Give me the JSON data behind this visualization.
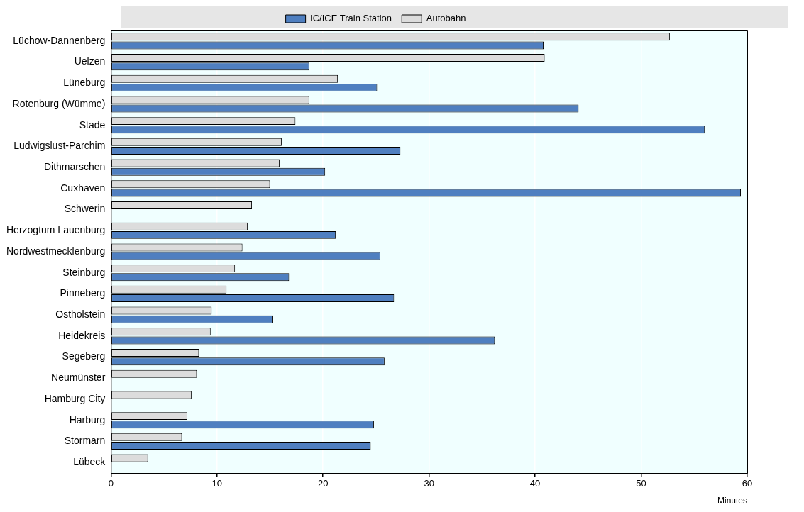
{
  "chart_data": {
    "type": "bar",
    "orientation": "horizontal",
    "xlabel": "Minutes",
    "categories": [
      "Lüchow-Dannenberg",
      "Uelzen",
      "Lüneburg",
      "Rotenburg (Wümme)",
      "Stade",
      "Ludwigslust-Parchim",
      "Dithmarschen",
      "Cuxhaven",
      "Schwerin",
      "Herzogtum Lauenburg",
      "Nordwestmecklenburg",
      "Steinburg",
      "Pinneberg",
      "Ostholstein",
      "Heidekreis",
      "Segeberg",
      "Neumünster",
      "Hamburg City",
      "Harburg",
      "Stormarn",
      "Lübeck"
    ],
    "series": [
      {
        "name": "IC/ICE Train Station",
        "color": "#4f7fc0",
        "values": [
          40.8,
          18.7,
          25.1,
          44.1,
          56.0,
          27.3,
          20.2,
          59.4,
          null,
          21.2,
          25.4,
          16.8,
          26.7,
          15.3,
          36.2,
          25.8,
          null,
          null,
          24.8,
          24.5,
          null
        ]
      },
      {
        "name": "Autobahn",
        "color": "#dcdcdc",
        "values": [
          52.7,
          40.9,
          21.4,
          18.7,
          17.4,
          16.1,
          15.9,
          15.0,
          13.3,
          12.9,
          12.4,
          11.7,
          10.9,
          9.5,
          9.4,
          8.3,
          8.1,
          7.6,
          7.2,
          6.7,
          3.5
        ]
      }
    ],
    "xlim": [
      0,
      60
    ],
    "xticks": [
      0,
      10,
      20,
      30,
      40,
      50,
      60
    ],
    "grid": "x",
    "legend": "top"
  }
}
